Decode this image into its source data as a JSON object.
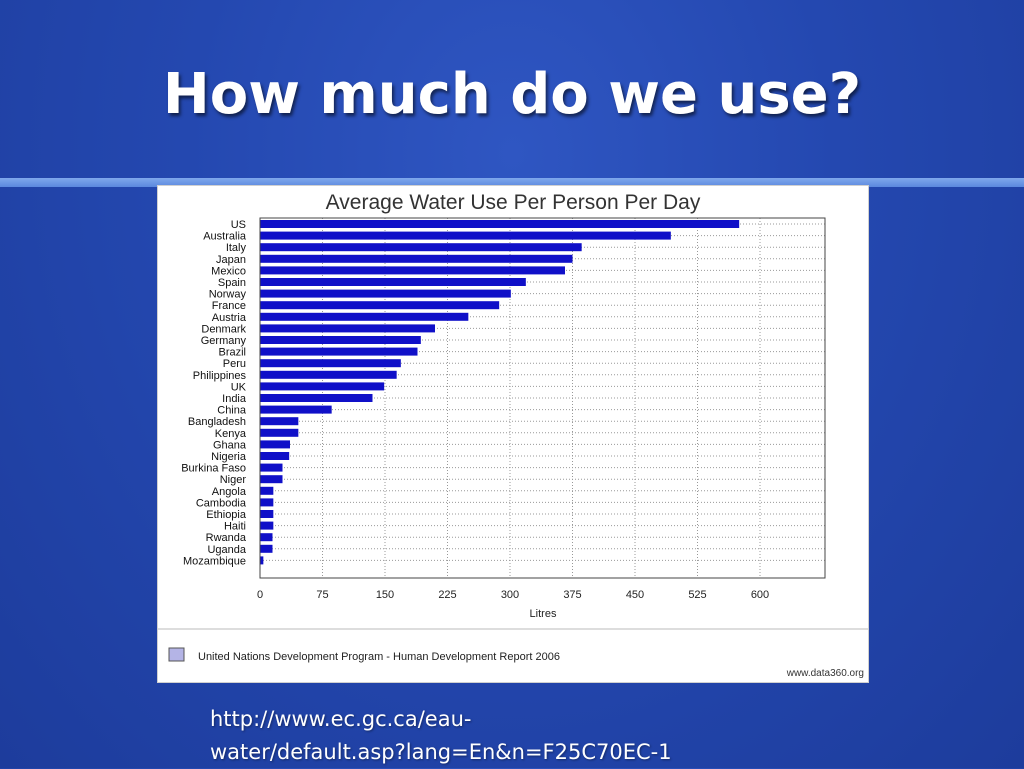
{
  "slide": {
    "title": "How much do we use?",
    "link_line1": "http://www.ec.gc.ca/eau-",
    "link_line2": "water/default.asp?lang=En&n=F25C70EC-1"
  },
  "colors": {
    "background": "#2448b0",
    "bar": "#1010c8",
    "rule": "#6f9be6"
  },
  "chart_data": {
    "type": "bar",
    "orientation": "horizontal",
    "title": "Average Water Use Per Person Per Day",
    "xlabel": "Litres",
    "ylabel": "",
    "xlim": [
      0,
      600
    ],
    "xticks": [
      "0",
      "75",
      "150",
      "225",
      "300",
      "375",
      "450",
      "525",
      "600"
    ],
    "grid": true,
    "categories": [
      "US",
      "Australia",
      "Italy",
      "Japan",
      "Mexico",
      "Spain",
      "Norway",
      "France",
      "Austria",
      "Denmark",
      "Germany",
      "Brazil",
      "Peru",
      "Philippines",
      "UK",
      "India",
      "China",
      "Bangladesh",
      "Kenya",
      "Ghana",
      "Nigeria",
      "Burkina Faso",
      "Niger",
      "Angola",
      "Cambodia",
      "Ethiopia",
      "Haiti",
      "Rwanda",
      "Uganda",
      "Mozambique"
    ],
    "values": [
      575,
      493,
      386,
      375,
      366,
      319,
      301,
      287,
      250,
      210,
      193,
      189,
      169,
      164,
      149,
      135,
      86,
      46,
      46,
      36,
      35,
      27,
      27,
      16,
      16,
      16,
      16,
      15,
      15,
      4
    ],
    "legend": "United Nations Development Program - Human Development Report 2006",
    "source": "www.data360.org"
  }
}
